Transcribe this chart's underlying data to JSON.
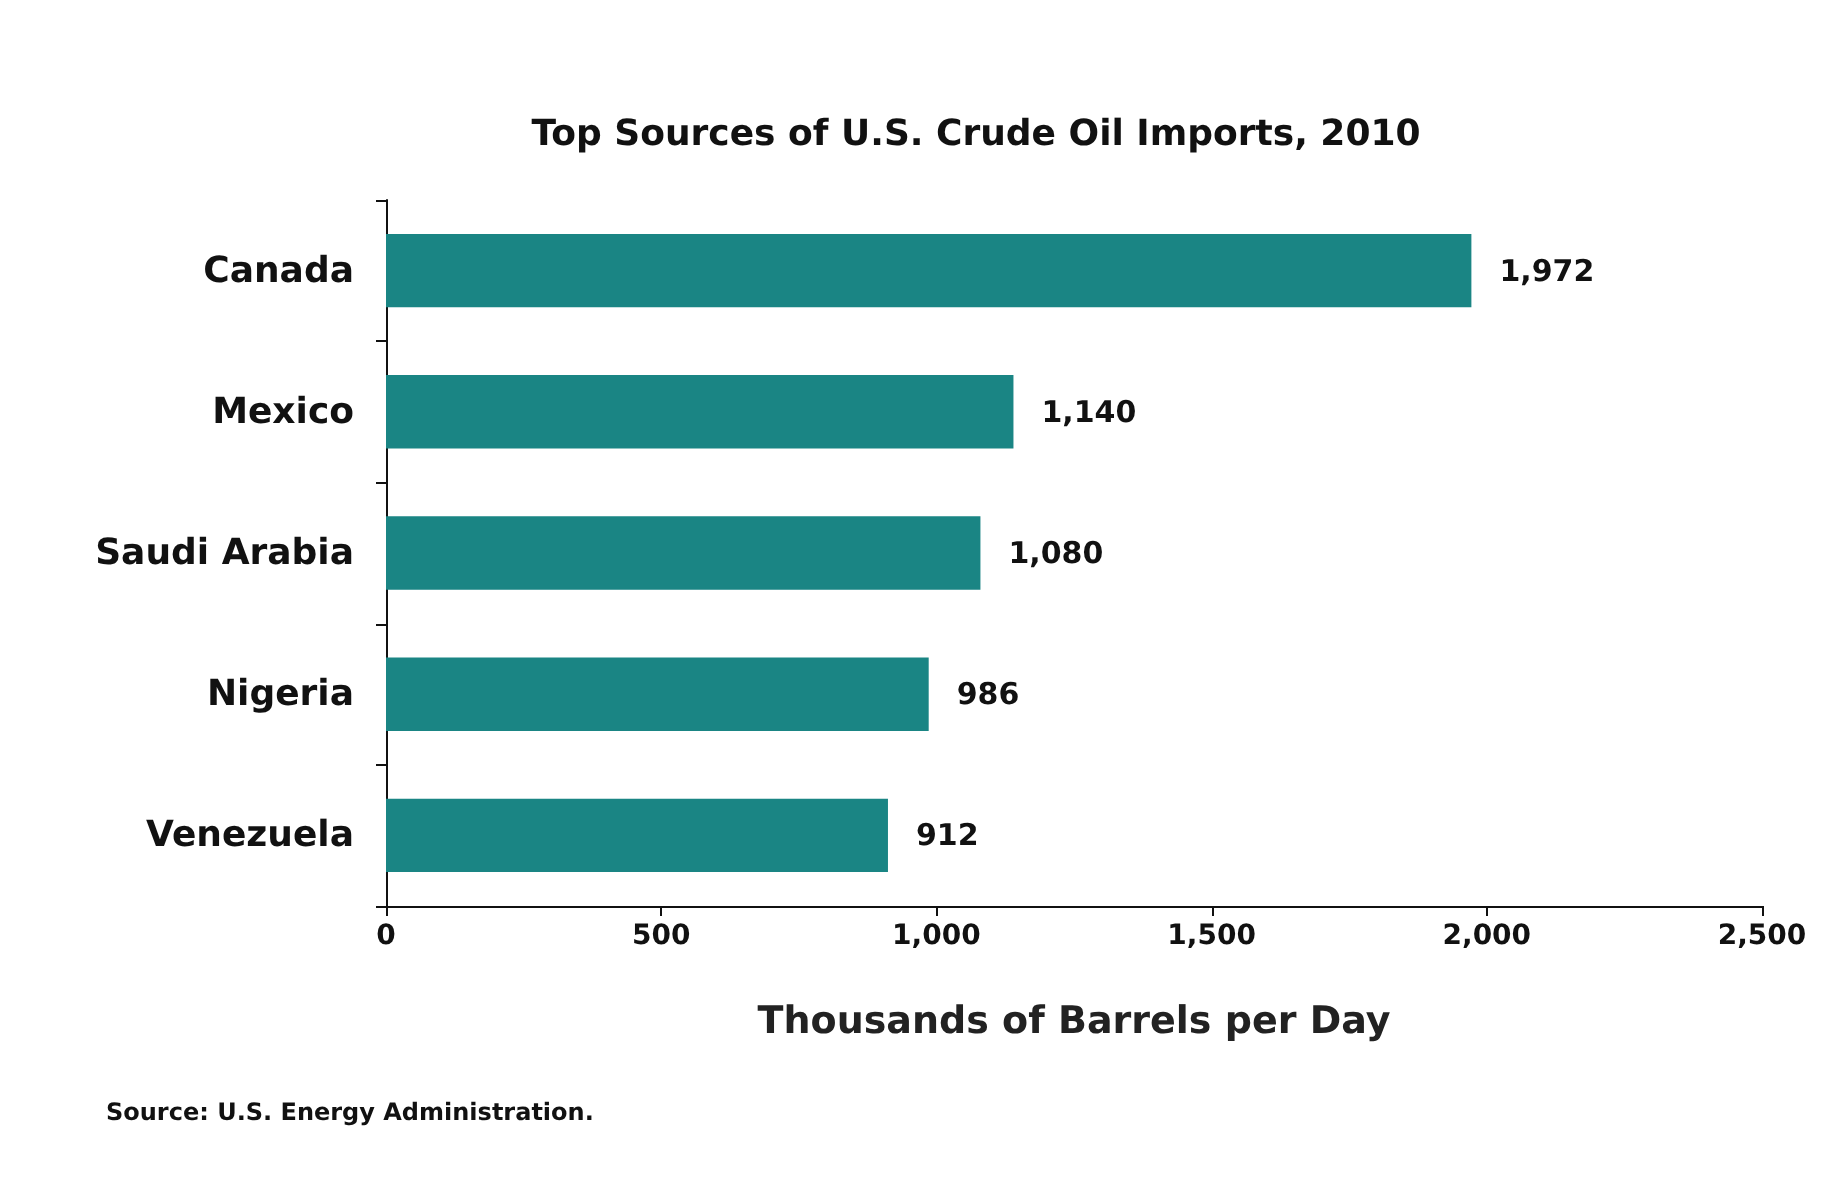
{
  "chart_data": {
    "type": "bar",
    "orientation": "horizontal",
    "title": "Top Sources of U.S. Crude Oil Imports, 2010",
    "xlabel": "Thousands of Barrels per Day",
    "categories": [
      "Canada",
      "Mexico",
      "Saudi Arabia",
      "Nigeria",
      "Venezuela"
    ],
    "values": [
      1972,
      1140,
      1080,
      986,
      912
    ],
    "color": "#1a8584",
    "xlim": [
      0,
      2500
    ],
    "xticks": [
      {
        "value": 0,
        "label": "0"
      },
      {
        "value": 500,
        "label": "500"
      },
      {
        "value": 1000,
        "label": "1,000"
      },
      {
        "value": 1500,
        "label": "1,500"
      },
      {
        "value": 2000,
        "label": "2,000"
      },
      {
        "value": 2500,
        "label": "2,500"
      }
    ],
    "value_labels": [
      "1,972",
      "1,140",
      "1,080",
      "986",
      "912"
    ],
    "grid": false,
    "annotations": [
      "Source: U.S. Energy Administration."
    ]
  }
}
